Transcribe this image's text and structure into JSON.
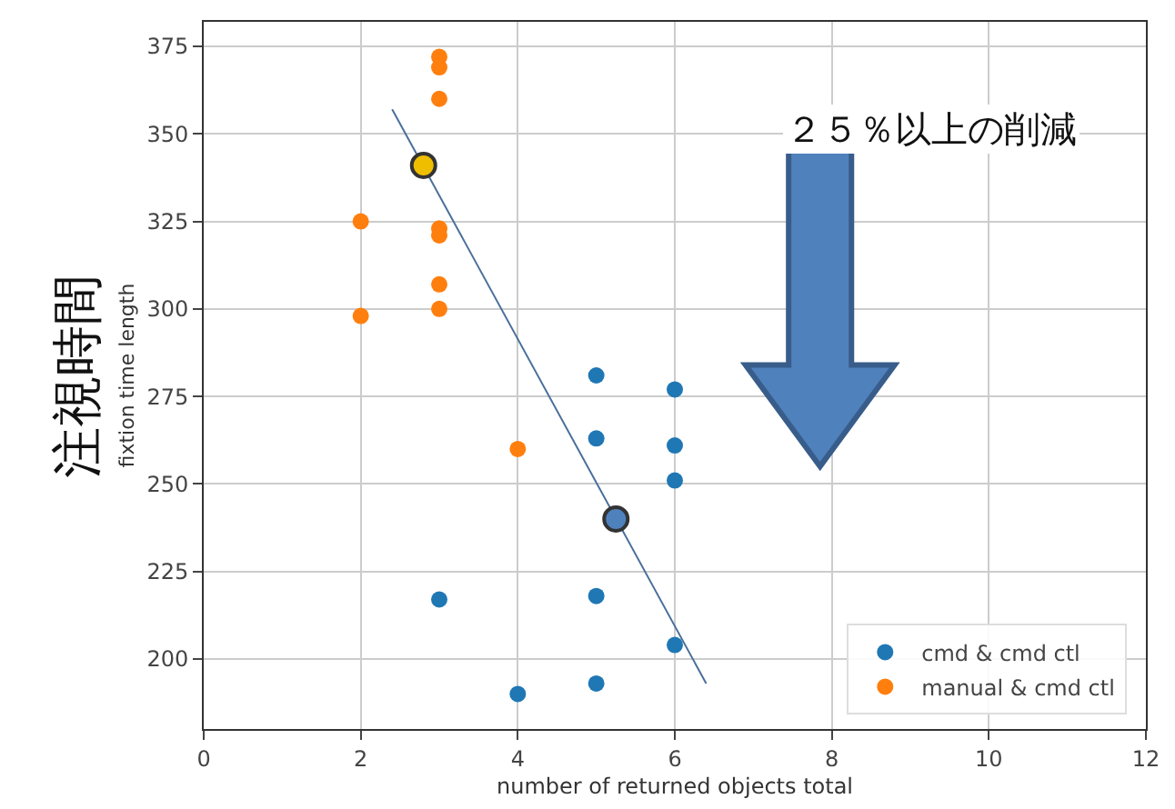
{
  "chart_data": {
    "type": "scatter",
    "xlabel": "number of returned objects total",
    "ylabel": "fixtion time length",
    "xlim": [
      0,
      12
    ],
    "ylim": [
      180,
      382
    ],
    "xticks": [
      0,
      2,
      4,
      6,
      8,
      10,
      12
    ],
    "yticks": [
      200,
      225,
      250,
      275,
      300,
      325,
      350,
      375
    ],
    "grid": true,
    "legend": "bottom right",
    "marker": "circle",
    "series": [
      {
        "name": "cmd & cmd ctl",
        "color": "#1f77b4",
        "x": [
          5,
          6,
          5,
          6,
          6,
          3,
          5,
          6,
          5,
          4
        ],
        "values": [
          281,
          277,
          263,
          261,
          251,
          217,
          218,
          204,
          193,
          190
        ]
      },
      {
        "name": "manual & cmd ctl",
        "color": "#ff7f0e",
        "x": [
          3,
          3,
          3,
          2,
          3,
          3,
          3,
          3,
          2,
          4
        ],
        "values": [
          372,
          369,
          360,
          325,
          323,
          321,
          307,
          300,
          298,
          260
        ]
      },
      {
        "type": "line",
        "color": "#4a6f9a",
        "x": [
          2.4,
          6.4
        ],
        "values": [
          357,
          193
        ],
        "marker": "none"
      },
      {
        "color": "#f0be00",
        "x": [
          2.8
        ],
        "values": [
          341
        ]
      },
      {
        "color": "#4f81bd",
        "x": [
          5.25
        ],
        "values": [
          240
        ]
      }
    ],
    "annotations": [
      "２５％以上の削減",
      "注視時間"
    ]
  }
}
